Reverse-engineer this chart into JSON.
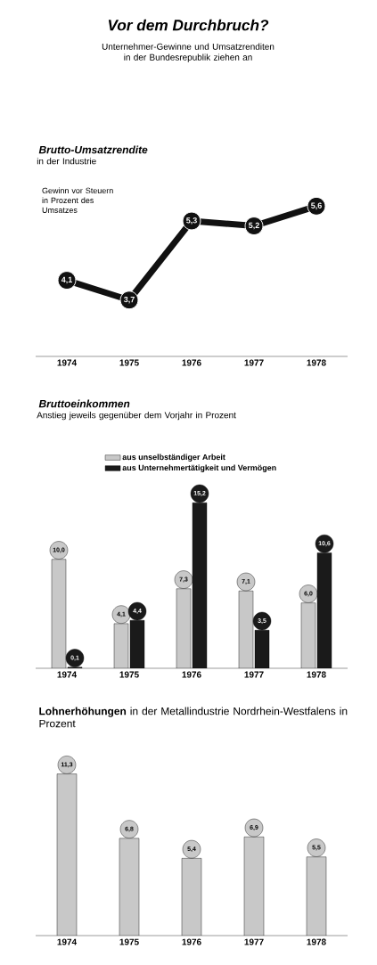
{
  "chart_data": [
    {
      "type": "other",
      "title": "Vor dem Durchbruch?",
      "subtitle": "Unternehmer-Gewinne und Umsatzrenditen in der Bundesrepublik ziehen an"
    },
    {
      "type": "line",
      "title": "Brutto-Umsatzrendite",
      "subtitle": "in der Industrie",
      "annotations": [
        "Gewinn vor Steuern in Prozent des Umsatzes"
      ],
      "categories": [
        "1974",
        "1975",
        "1976",
        "1977",
        "1978"
      ],
      "values": [
        4.1,
        3.7,
        5.3,
        5.2,
        5.6
      ],
      "value_labels": [
        "4,1",
        "3,7",
        "5,3",
        "5,2",
        "5,6"
      ],
      "color": "#111111",
      "marker": "circle"
    },
    {
      "type": "bar",
      "title": "Bruttoeinkommen",
      "subtitle": "Anstieg jeweils gegenüber dem Vorjahr in Prozent",
      "categories": [
        "1974",
        "1975",
        "1976",
        "1977",
        "1978"
      ],
      "legend": "top",
      "series": [
        {
          "name": "aus unselbständiger Arbeit",
          "color": "#c8c8c8",
          "values": [
            10.0,
            4.1,
            7.3,
            7.1,
            6.0
          ],
          "value_labels": [
            "10,0",
            "4,1",
            "7,3",
            "7,1",
            "6,0"
          ]
        },
        {
          "name": "aus Unternehmertätigkeit und Vermögen",
          "color": "#1a1a1a",
          "values": [
            0.1,
            4.4,
            15.2,
            3.5,
            10.6
          ],
          "value_labels": [
            "0,1",
            "4,4",
            "15,2",
            "3,5",
            "10,6"
          ]
        }
      ]
    },
    {
      "type": "bar",
      "title": "**Lohnerhöhungen** in der Metallindustrie Nordrhein-Westfalens in Prozent",
      "categories": [
        "1974",
        "1975",
        "1976",
        "1977",
        "1978"
      ],
      "values": [
        11.3,
        6.8,
        5.4,
        6.9,
        5.5
      ],
      "value_labels": [
        "11,3",
        "6,8",
        "5,4",
        "6,9",
        "5,5"
      ],
      "color": "#c8c8c8"
    }
  ]
}
